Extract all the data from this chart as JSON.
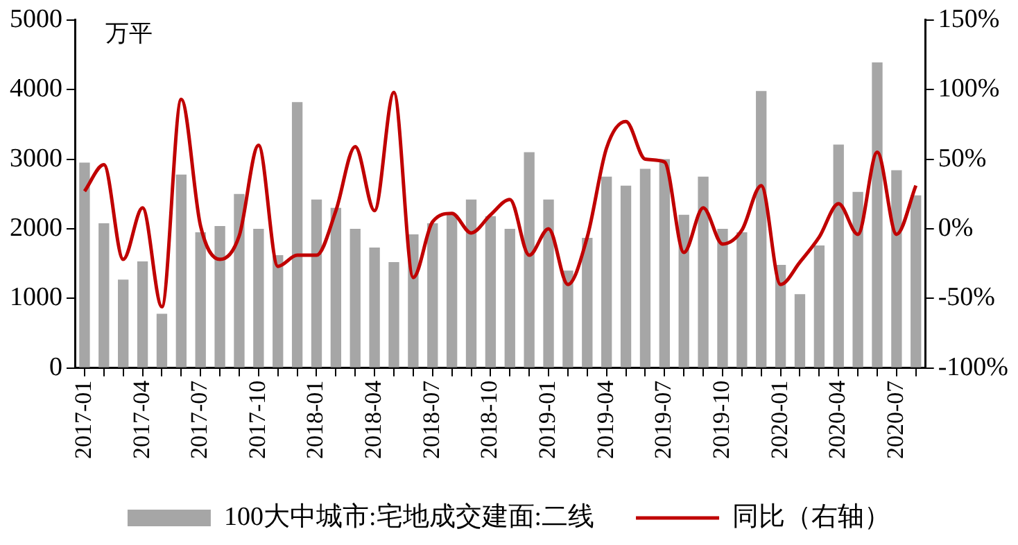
{
  "chart_data": {
    "type": "bar",
    "categories": [
      "2017-01",
      null,
      null,
      "2017-04",
      null,
      null,
      "2017-07",
      null,
      null,
      "2017-10",
      null,
      null,
      "2018-01",
      null,
      null,
      "2018-04",
      null,
      null,
      "2018-07",
      null,
      null,
      "2018-10",
      null,
      null,
      "2019-01",
      null,
      null,
      "2019-04",
      null,
      null,
      "2019-07",
      null,
      null,
      "2019-10",
      null,
      null,
      "2020-01",
      null,
      null,
      "2020-04",
      null,
      null,
      "2020-07",
      null
    ],
    "series": [
      {
        "name": "100大中城市:宅地成交建面:二线",
        "color": "#a6a6a6",
        "values": [
          2950,
          2080,
          1270,
          1530,
          780,
          2780,
          1950,
          2040,
          2500,
          2000,
          1620,
          3820,
          2420,
          2300,
          2000,
          1730,
          1520,
          1920,
          2080,
          2200,
          2420,
          2180,
          2000,
          3100,
          2420,
          1400,
          1870,
          2750,
          2620,
          2860,
          3000,
          2200,
          2750,
          2000,
          1950,
          3980,
          1480,
          1060,
          1760,
          3210,
          2530,
          4390,
          2840,
          2480
        ]
      },
      {
        "name": "同比（右轴）",
        "type": "line",
        "axis": "y2",
        "color": "#c00000",
        "values": [
          27,
          46,
          -22,
          15,
          -56,
          93,
          2,
          -22,
          -5,
          60,
          -27,
          -19,
          -19,
          13,
          59,
          13,
          98,
          -35,
          5,
          11,
          -3,
          10,
          21,
          -19,
          0,
          -40,
          -6,
          58,
          77,
          50,
          48,
          -17,
          15,
          -11,
          -1,
          31,
          -40,
          -24,
          -6,
          18,
          -4,
          55,
          -4,
          31
        ]
      }
    ],
    "ylim": [
      0,
      5000
    ],
    "yticks": [
      0,
      1000,
      2000,
      3000,
      4000,
      5000
    ],
    "y2lim": [
      -100,
      150
    ],
    "y2ticks": [
      {
        "value": -100,
        "label": "-100%"
      },
      {
        "value": -50,
        "label": "-50%"
      },
      {
        "value": 0,
        "label": "0%"
      },
      {
        "value": 50,
        "label": "50%"
      },
      {
        "value": 100,
        "label": "100%"
      },
      {
        "value": 150,
        "label": "150%"
      }
    ],
    "annotations": [
      "万平"
    ],
    "grid": false,
    "legend": "bottom",
    "marker": "none",
    "line_style": "solid"
  }
}
